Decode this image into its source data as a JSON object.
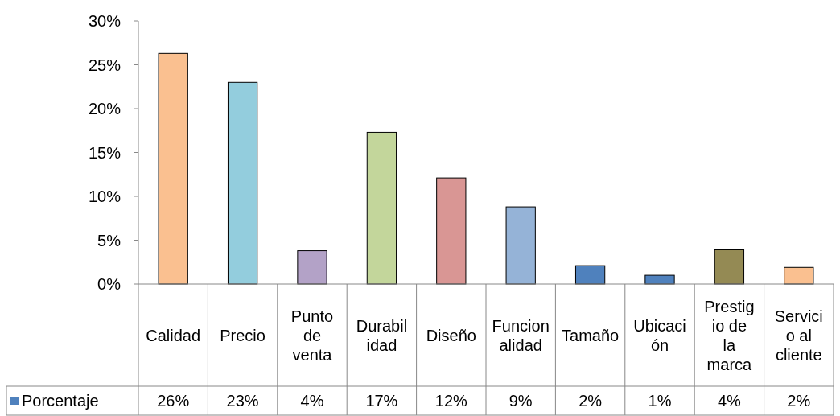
{
  "chart_data": {
    "type": "bar",
    "categories": [
      "Calidad",
      "Precio",
      "Punto de venta",
      "Durabilidad",
      "Diseño",
      "Funcionalidad",
      "Tamaño",
      "Ubicación",
      "Prestigio de la marca",
      "Servicio al cliente"
    ],
    "series": [
      {
        "name": "Porcentaje",
        "color": "#4f81bd",
        "colors": [
          "#fac090",
          "#93cddd",
          "#b3a2c7",
          "#c3d69b",
          "#d99694",
          "#95b3d7",
          "#4f81bd",
          "#4f81bd",
          "#948a54",
          "#fac090"
        ],
        "values": [
          26.3,
          23,
          3.8,
          17.3,
          12.1,
          8.8,
          2.1,
          1,
          3.9,
          1.9
        ],
        "value_labels": [
          "26%",
          "23%",
          "4%",
          "17%",
          "12%",
          "9%",
          "2%",
          "1%",
          "4%",
          "2%"
        ]
      }
    ],
    "ylim": [
      0,
      30
    ],
    "yticks": [
      {
        "value": 0,
        "label": "0%"
      },
      {
        "value": 5,
        "label": "5%"
      },
      {
        "value": 10,
        "label": "10%"
      },
      {
        "value": 15,
        "label": "15%"
      },
      {
        "value": 20,
        "label": "20%"
      },
      {
        "value": 25,
        "label": "25%"
      },
      {
        "value": 30,
        "label": "30%"
      }
    ],
    "grid": false,
    "legend": "bottom"
  }
}
